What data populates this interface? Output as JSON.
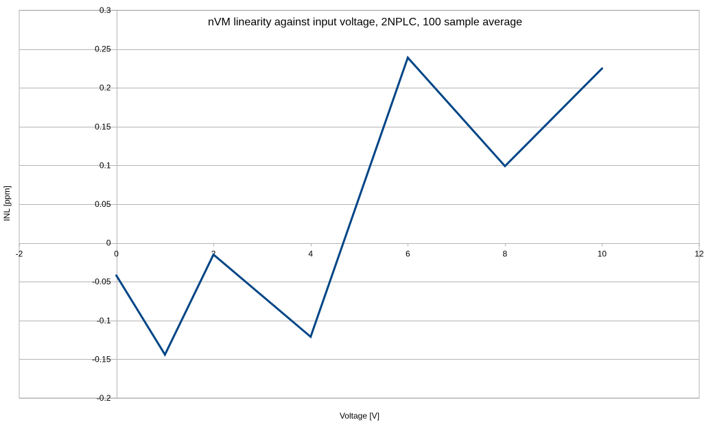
{
  "chart_data": {
    "type": "line",
    "title": "nVM linearity against input voltage, 2NPLC, 100 sample average",
    "xlabel": "Voltage [V]",
    "ylabel": "INL [ppm]",
    "xlim": [
      -2,
      12
    ],
    "ylim": [
      -0.2,
      0.3
    ],
    "xticks": [
      -2,
      0,
      2,
      4,
      6,
      8,
      10,
      12
    ],
    "yticks": [
      -0.2,
      -0.15,
      -0.1,
      -0.05,
      0,
      0.05,
      0.1,
      0.15,
      0.2,
      0.25,
      0.3
    ],
    "xtick_labels": [
      "-2",
      "0",
      "2",
      "4",
      "6",
      "8",
      "10",
      "12"
    ],
    "ytick_labels": [
      "-0.2",
      "-0.15",
      "-0.1",
      "-0.05",
      "0",
      "0.05",
      "0.1",
      "0.15",
      "0.2",
      "0.25",
      "0.3"
    ],
    "grid": true,
    "legend": "none",
    "series": [
      {
        "color": "#004586",
        "x": [
          0,
          1,
          2,
          4,
          6,
          8,
          10
        ],
        "y": [
          -0.042,
          -0.144,
          -0.015,
          -0.121,
          0.239,
          0.099,
          0.225
        ]
      }
    ]
  }
}
